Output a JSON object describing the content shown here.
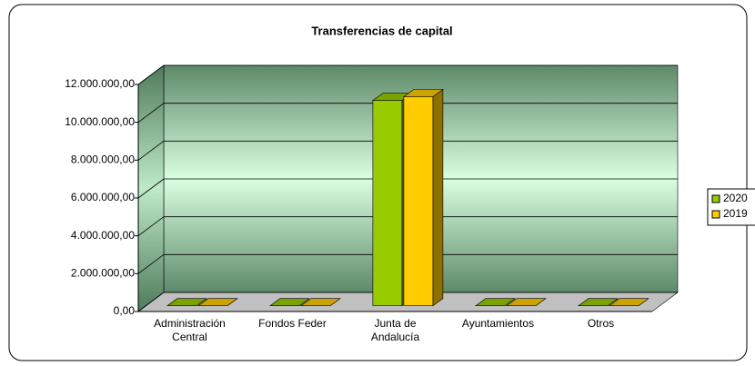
{
  "chart_data": {
    "type": "bar3d",
    "title": "Transferencias de capital",
    "categories": [
      "Administración Central",
      "Fondos Feder",
      "Junta de Andalucía",
      "Ayuntamientos",
      "Otros"
    ],
    "series": [
      {
        "name": "2020",
        "color": "#99cc00",
        "values": [
          0,
          0,
          10850000,
          0,
          0
        ]
      },
      {
        "name": "2019",
        "color": "#ffcc00",
        "values": [
          0,
          0,
          11050000,
          0,
          0
        ]
      }
    ],
    "ylim": [
      0,
      12000000
    ],
    "yticks": [
      {
        "value": 0,
        "label": "0,00"
      },
      {
        "value": 2000000,
        "label": "2.000.000,00"
      },
      {
        "value": 4000000,
        "label": "4.000.000,00"
      },
      {
        "value": 6000000,
        "label": "6.000.000,00"
      },
      {
        "value": 8000000,
        "label": "8.000.000,00"
      },
      {
        "value": 10000000,
        "label": "10.000.000,00"
      },
      {
        "value": 12000000,
        "label": "12.000.000,00"
      }
    ],
    "grid": true,
    "legend": "right"
  }
}
